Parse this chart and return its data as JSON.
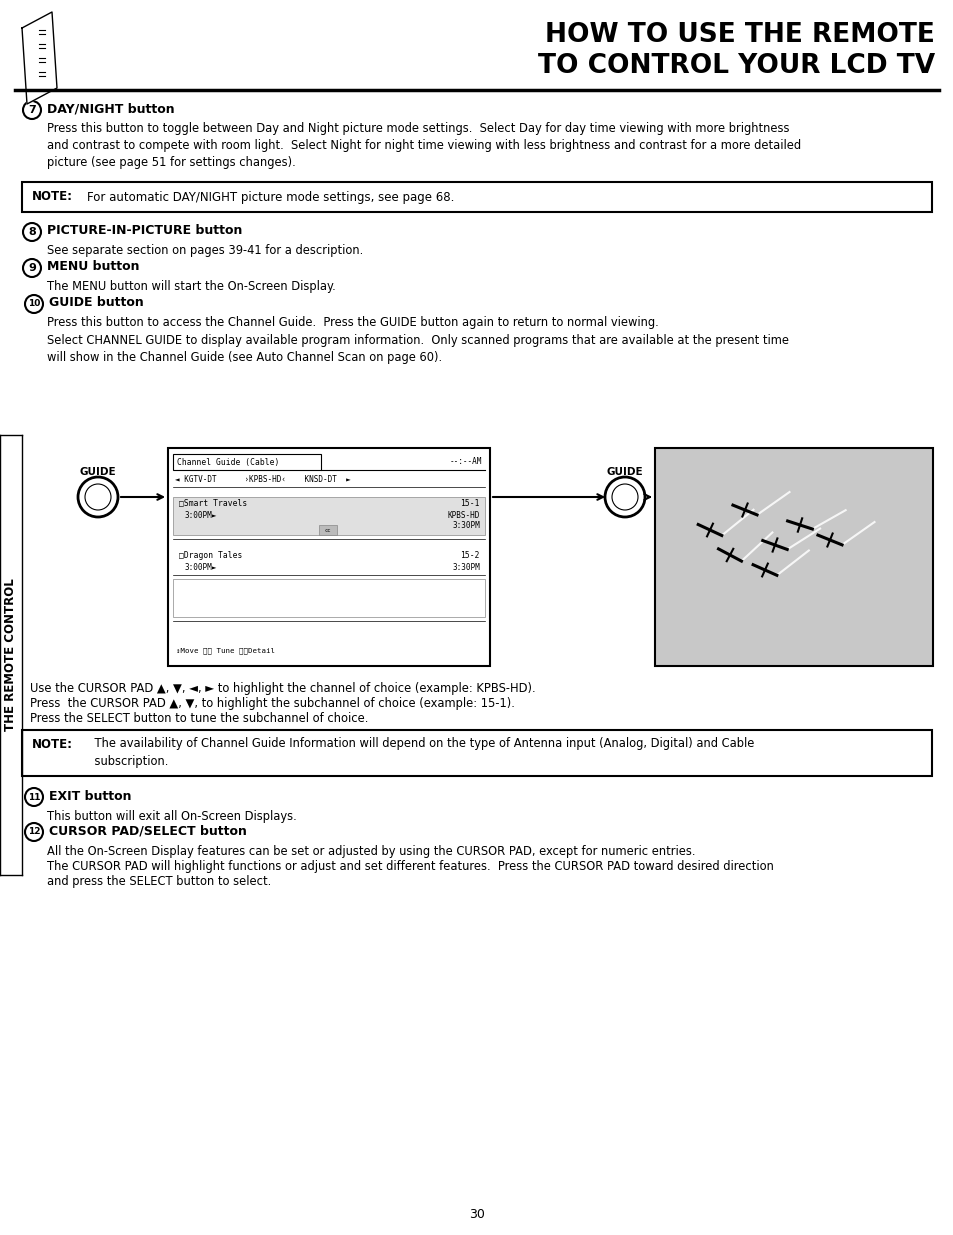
{
  "title_line1": "HOW TO USE THE REMOTE",
  "title_line2": "TO CONTROL YOUR LCD TV",
  "bg_color": "#ffffff",
  "text_color": "#000000",
  "page_number": "30",
  "sidebar_text": "THE REMOTE CONTROL",
  "section7_header": "DAY/NIGHT button",
  "section7_body": "Press this button to toggle between Day and Night picture mode settings.  Select Day for day time viewing with more brightness\nand contrast to compete with room light.  Select Night for night time viewing with less brightness and contrast for a more detailed\npicture (see page 51 for settings changes).",
  "note1_label": "NOTE:",
  "note1_text": "    For automatic DAY/NIGHT picture mode settings, see page 68.",
  "section8_header": "PICTURE-IN-PICTURE button",
  "section8_body": "See separate section on pages 39-41 for a description.",
  "section9_header": "MENU button",
  "section9_body": "The MENU button will start the On-Screen Display.",
  "section10_header": "GUIDE button",
  "section10_body1": "Press this button to access the Channel Guide.  Press the GUIDE button again to return to normal viewing.",
  "section10_body2": "Select CHANNEL GUIDE to display available program information.  Only scanned programs that are available at the present time\nwill show in the Channel Guide (see Auto Channel Scan on page 60).",
  "cursor_lines": [
    "Use the CURSOR PAD ▲, ▼, ◄, ► to highlight the channel of choice (example: KPBS-HD).",
    "Press  the CURSOR PAD ▲, ▼, to highlight the subchannel of choice (example: 15-1).",
    "Press the SELECT button to tune the subchannel of choice."
  ],
  "note2_label": "NOTE:",
  "note2_line1": "    The availability of Channel Guide Information will depend on the type of Antenna input (Analog, Digital) and Cable",
  "note2_line2": "    subscription.",
  "section11_header": "EXIT button",
  "section11_body": "This button will exit all On-Screen Displays.",
  "section12_header": "CURSOR PAD/SELECT button",
  "section12_body1": "All the On-Screen Display features can be set or adjusted by using the CURSOR PAD, except for numeric entries.",
  "section12_body2": "The CURSOR PAD will highlight functions or adjust and set different features.  Press the CURSOR PAD toward desired direction",
  "section12_body3": "and press the SELECT button to select."
}
